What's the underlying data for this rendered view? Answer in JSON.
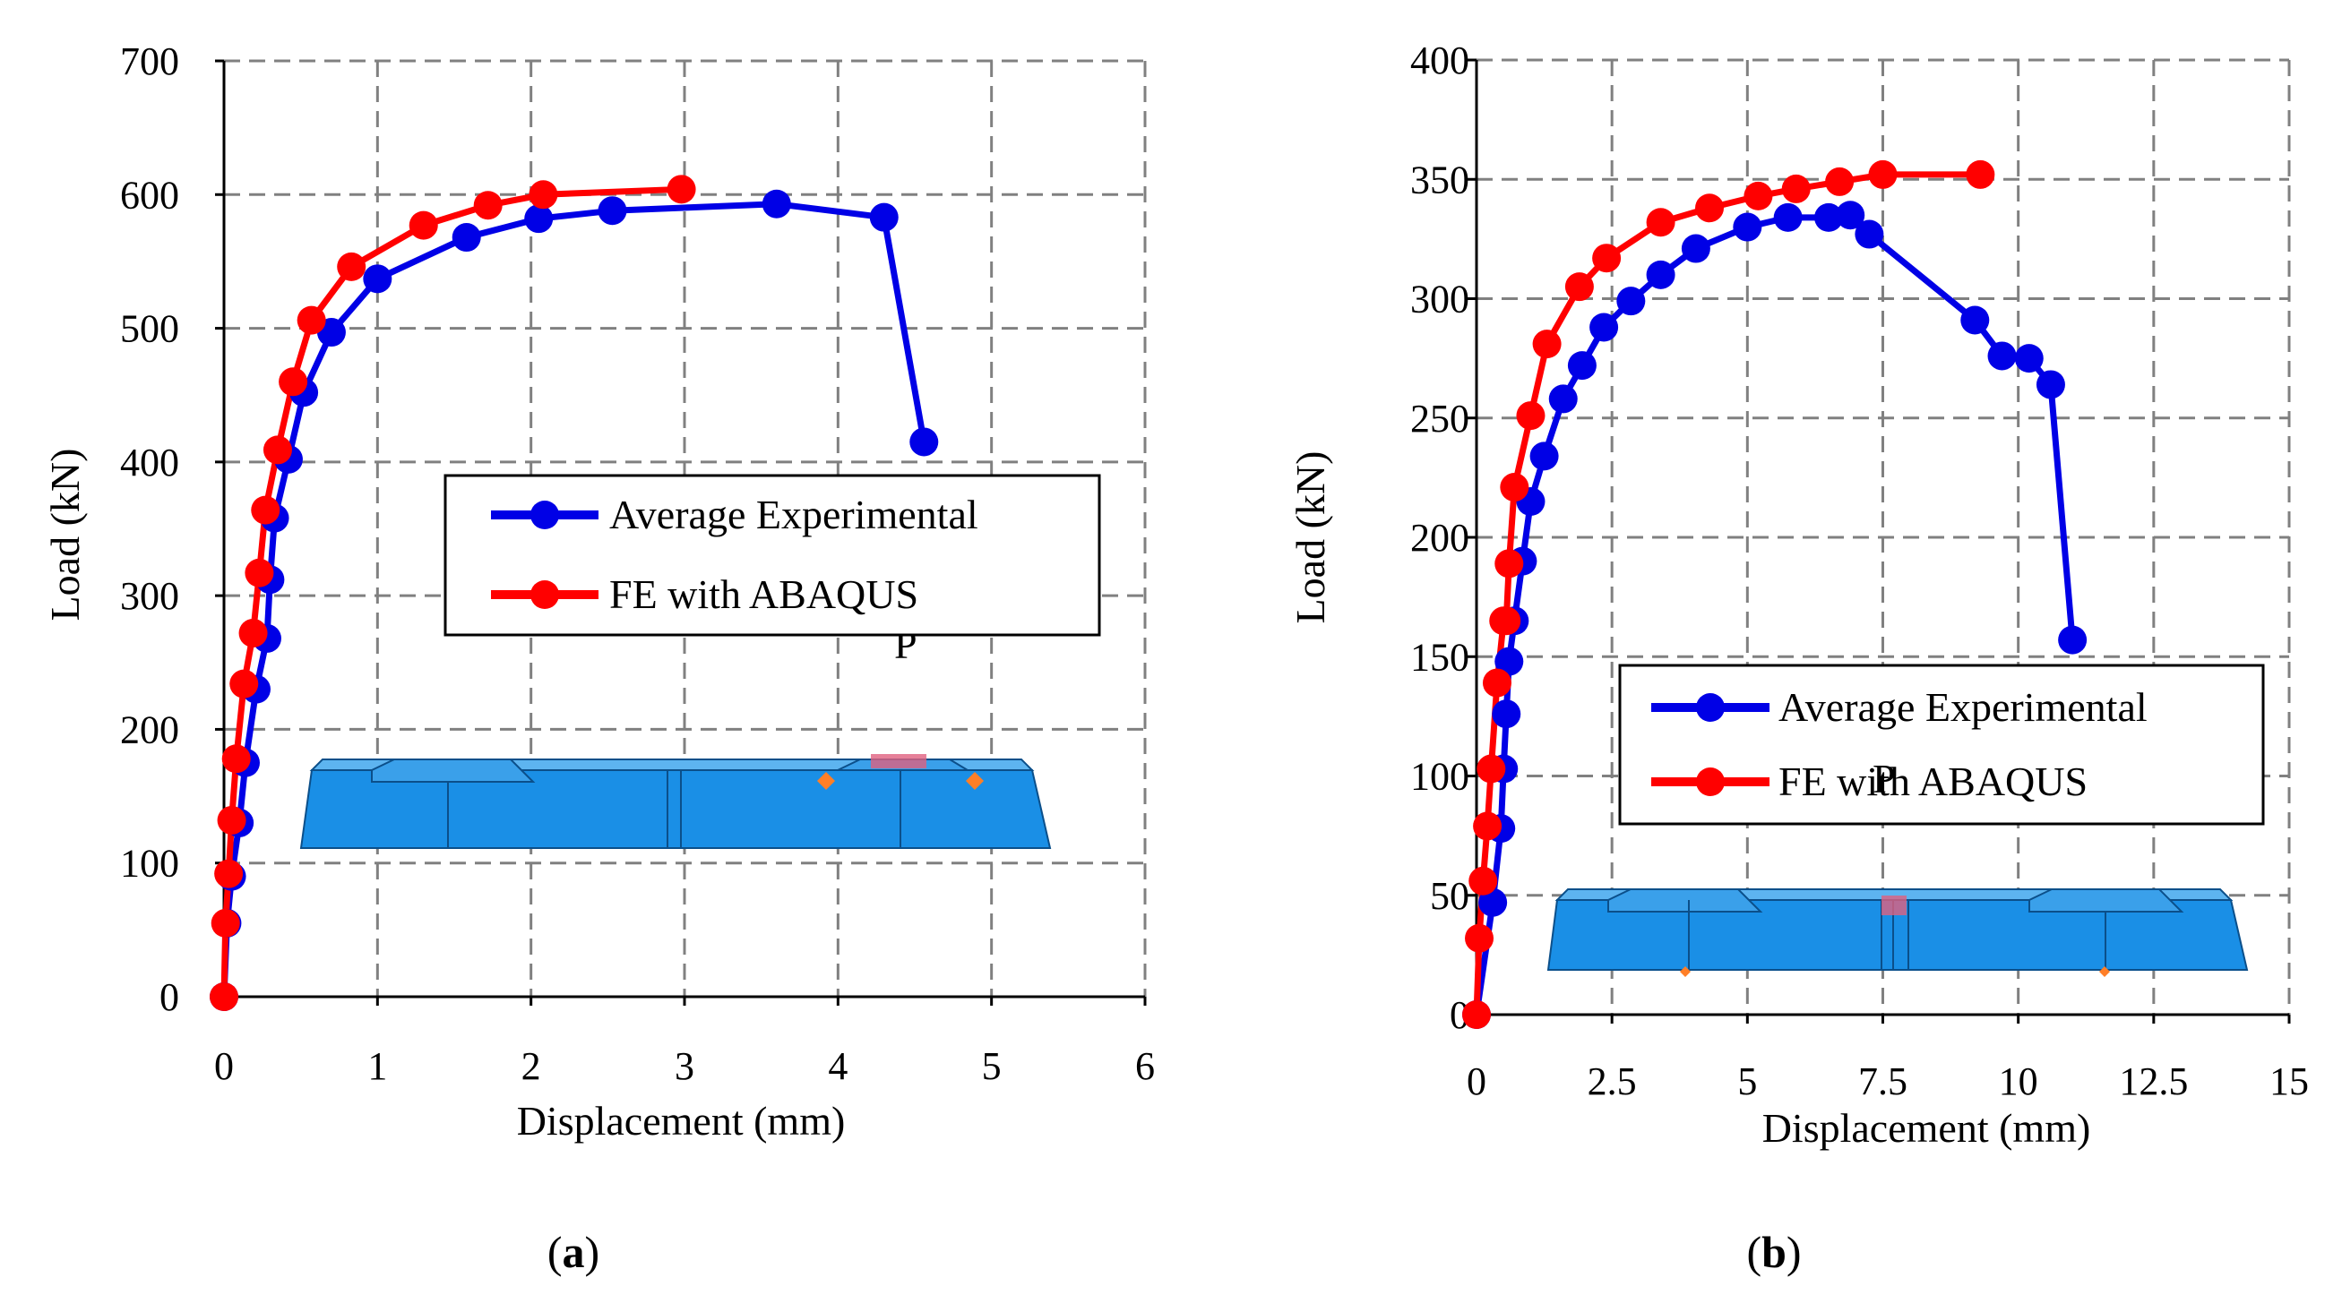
{
  "colors": {
    "experimental": "#0000e6",
    "fe": "#ff0000",
    "model_fill": "#1a8fe6",
    "model_stroke": "#0b4f8a",
    "support_marker": "#ff7f27",
    "load_marker": "#e06080"
  },
  "chart_data": [
    {
      "id": "a",
      "type": "line",
      "caption_paren_open": "(",
      "caption_letter": "a",
      "caption_paren_close": ")",
      "xlabel": "Displacement (mm)",
      "ylabel": "Load (kN)",
      "xlim": [
        0,
        6
      ],
      "ylim": [
        0,
        700
      ],
      "xticks": [
        0,
        1,
        2,
        3,
        4,
        5,
        6
      ],
      "xtick_labels": [
        "0",
        "1",
        "2",
        "3",
        "4",
        "5",
        "6"
      ],
      "yticks": [
        0,
        100,
        200,
        300,
        400,
        500,
        600,
        700
      ],
      "ytick_labels": [
        "0",
        "100",
        "200",
        "300",
        "400",
        "500",
        "600",
        "700"
      ],
      "grid": true,
      "legend_placement": "center-right",
      "inset_label": "P",
      "series": [
        {
          "name": "Average Experimental",
          "color_key": "experimental",
          "x": [
            0,
            0.02,
            0.05,
            0.1,
            0.14,
            0.21,
            0.28,
            0.3,
            0.33,
            0.42,
            0.52,
            0.7,
            1.0,
            1.58,
            2.05,
            2.53,
            3.6,
            4.3,
            4.56
          ],
          "y": [
            0,
            55,
            90,
            130,
            175,
            230,
            268,
            312,
            358,
            402,
            452,
            497,
            537,
            568,
            582,
            588,
            593,
            583,
            415
          ]
        },
        {
          "name": "FE with ABAQUS",
          "color_key": "fe",
          "x": [
            0,
            0.01,
            0.03,
            0.05,
            0.08,
            0.13,
            0.19,
            0.23,
            0.27,
            0.35,
            0.45,
            0.57,
            0.83,
            1.3,
            1.72,
            2.08,
            2.98
          ],
          "y": [
            0,
            55,
            92,
            132,
            178,
            234,
            272,
            317,
            364,
            409,
            460,
            506,
            546,
            577,
            592,
            600,
            604
          ]
        }
      ]
    },
    {
      "id": "b",
      "type": "line",
      "caption_paren_open": "(",
      "caption_letter": "b",
      "caption_paren_close": ")",
      "xlabel": "Displacement (mm)",
      "ylabel": "Load (kN)",
      "xlim": [
        0,
        15
      ],
      "ylim": [
        0,
        400
      ],
      "xticks": [
        0,
        2.5,
        5,
        7.5,
        10,
        12.5,
        15
      ],
      "xtick_labels": [
        "0",
        "2.5",
        "5",
        "7.5",
        "10",
        "12.5",
        "15"
      ],
      "yticks": [
        0,
        50,
        100,
        150,
        200,
        250,
        300,
        350,
        400
      ],
      "ytick_labels": [
        "0",
        "50",
        "100",
        "150",
        "200",
        "250",
        "300",
        "350",
        "400"
      ],
      "grid": true,
      "legend_placement": "lower-right",
      "inset_label": "P",
      "series": [
        {
          "name": "Average Experimental",
          "color_key": "experimental",
          "x": [
            0,
            0.3,
            0.45,
            0.5,
            0.55,
            0.6,
            0.7,
            0.85,
            1.0,
            1.25,
            1.6,
            1.95,
            2.35,
            2.85,
            3.4,
            4.05,
            5.0,
            5.75,
            6.5,
            6.9,
            7.25,
            9.2,
            9.7,
            10.2,
            10.6,
            11.0
          ],
          "y": [
            0,
            47,
            78,
            103,
            126,
            148,
            165,
            190,
            215,
            234,
            258,
            272,
            288,
            299,
            310,
            321,
            330,
            334,
            334,
            335,
            327,
            291,
            276,
            275,
            264,
            157
          ]
        },
        {
          "name": "FE with ABAQUS",
          "color_key": "fe",
          "x": [
            0,
            0.05,
            0.12,
            0.2,
            0.27,
            0.38,
            0.5,
            0.55,
            0.6,
            0.7,
            1.0,
            1.3,
            1.9,
            2.4,
            3.4,
            4.3,
            5.2,
            5.9,
            6.7,
            7.5,
            9.3
          ],
          "y": [
            0,
            32,
            56,
            79,
            103,
            139,
            165,
            165,
            189,
            221,
            251,
            281,
            305,
            317,
            332,
            338,
            343,
            346,
            349,
            352,
            352
          ]
        }
      ]
    }
  ]
}
